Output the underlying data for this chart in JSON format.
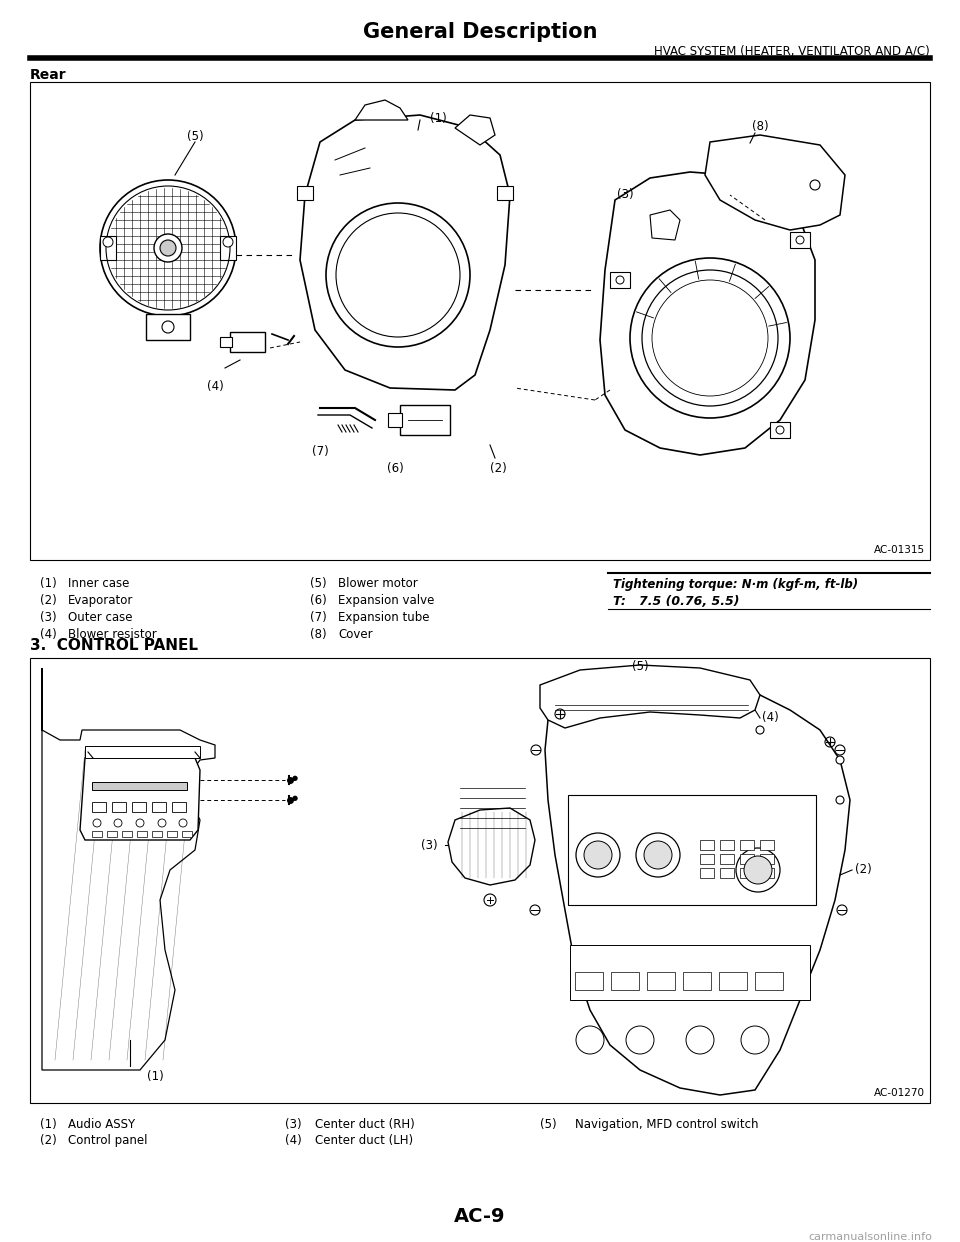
{
  "page_title": "General Description",
  "page_subtitle": "HVAC SYSTEM (HEATER, VENTILATOR AND A/C)",
  "page_number": "AC-9",
  "watermark": "carmanualsonline.info",
  "section1_label": "Rear",
  "section2_label": "3.  CONTROL PANEL",
  "diagram1_ref": "AC-01315",
  "diagram2_ref": "AC-01270",
  "tightening_torque_label": "Tightening torque: N·m (kgf-m, ft-lb)",
  "tightening_torque_value": "T:   7.5 (0.76, 5.5)",
  "parts_list_1": [
    [
      "(1)",
      "Inner case",
      "(5)",
      "Blower motor"
    ],
    [
      "(2)",
      "Evaporator",
      "(6)",
      "Expansion valve"
    ],
    [
      "(3)",
      "Outer case",
      "(7)",
      "Expansion tube"
    ],
    [
      "(4)",
      "Blower resistor",
      "(8)",
      "Cover"
    ]
  ],
  "parts_list_2_col1": [
    [
      "(1)",
      "Audio ASSY"
    ],
    [
      "(2)",
      "Control panel"
    ]
  ],
  "parts_list_2_col2": [
    [
      "(3)",
      "Center duct (RH)"
    ],
    [
      "(4)",
      "Center duct (LH)"
    ]
  ],
  "parts_list_2_col3": [
    [
      "(5)",
      "Navigation, MFD control switch"
    ],
    [
      "",
      ""
    ]
  ],
  "bg_color": "#ffffff",
  "text_color": "#000000",
  "box_border_color": "#000000"
}
